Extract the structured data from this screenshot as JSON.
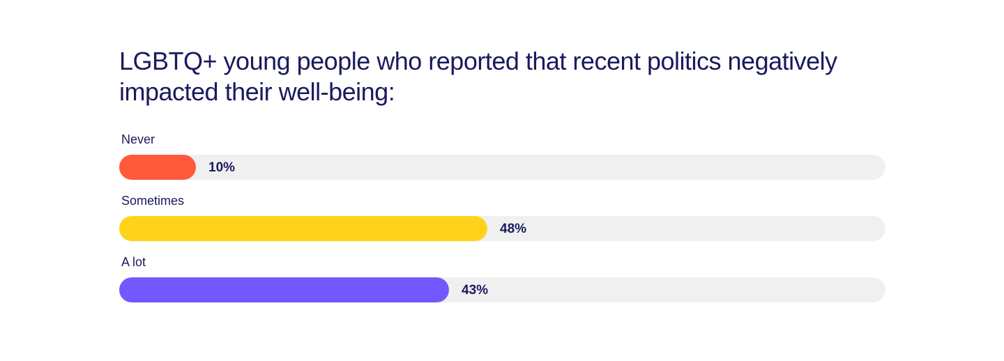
{
  "chart_data": {
    "type": "bar",
    "orientation": "horizontal",
    "title": "LGBTQ+ young people who reported that recent politics negatively impacted their well-being:",
    "categories": [
      "Never",
      "Sometimes",
      "A lot"
    ],
    "values": [
      10,
      48,
      43
    ],
    "value_labels": [
      "10%",
      "48%",
      "43%"
    ],
    "colors": [
      "#ff5a3c",
      "#ffd319",
      "#7457ff"
    ],
    "track_color": "#f0f0f0",
    "xlim": [
      0,
      100
    ],
    "grid": false
  }
}
